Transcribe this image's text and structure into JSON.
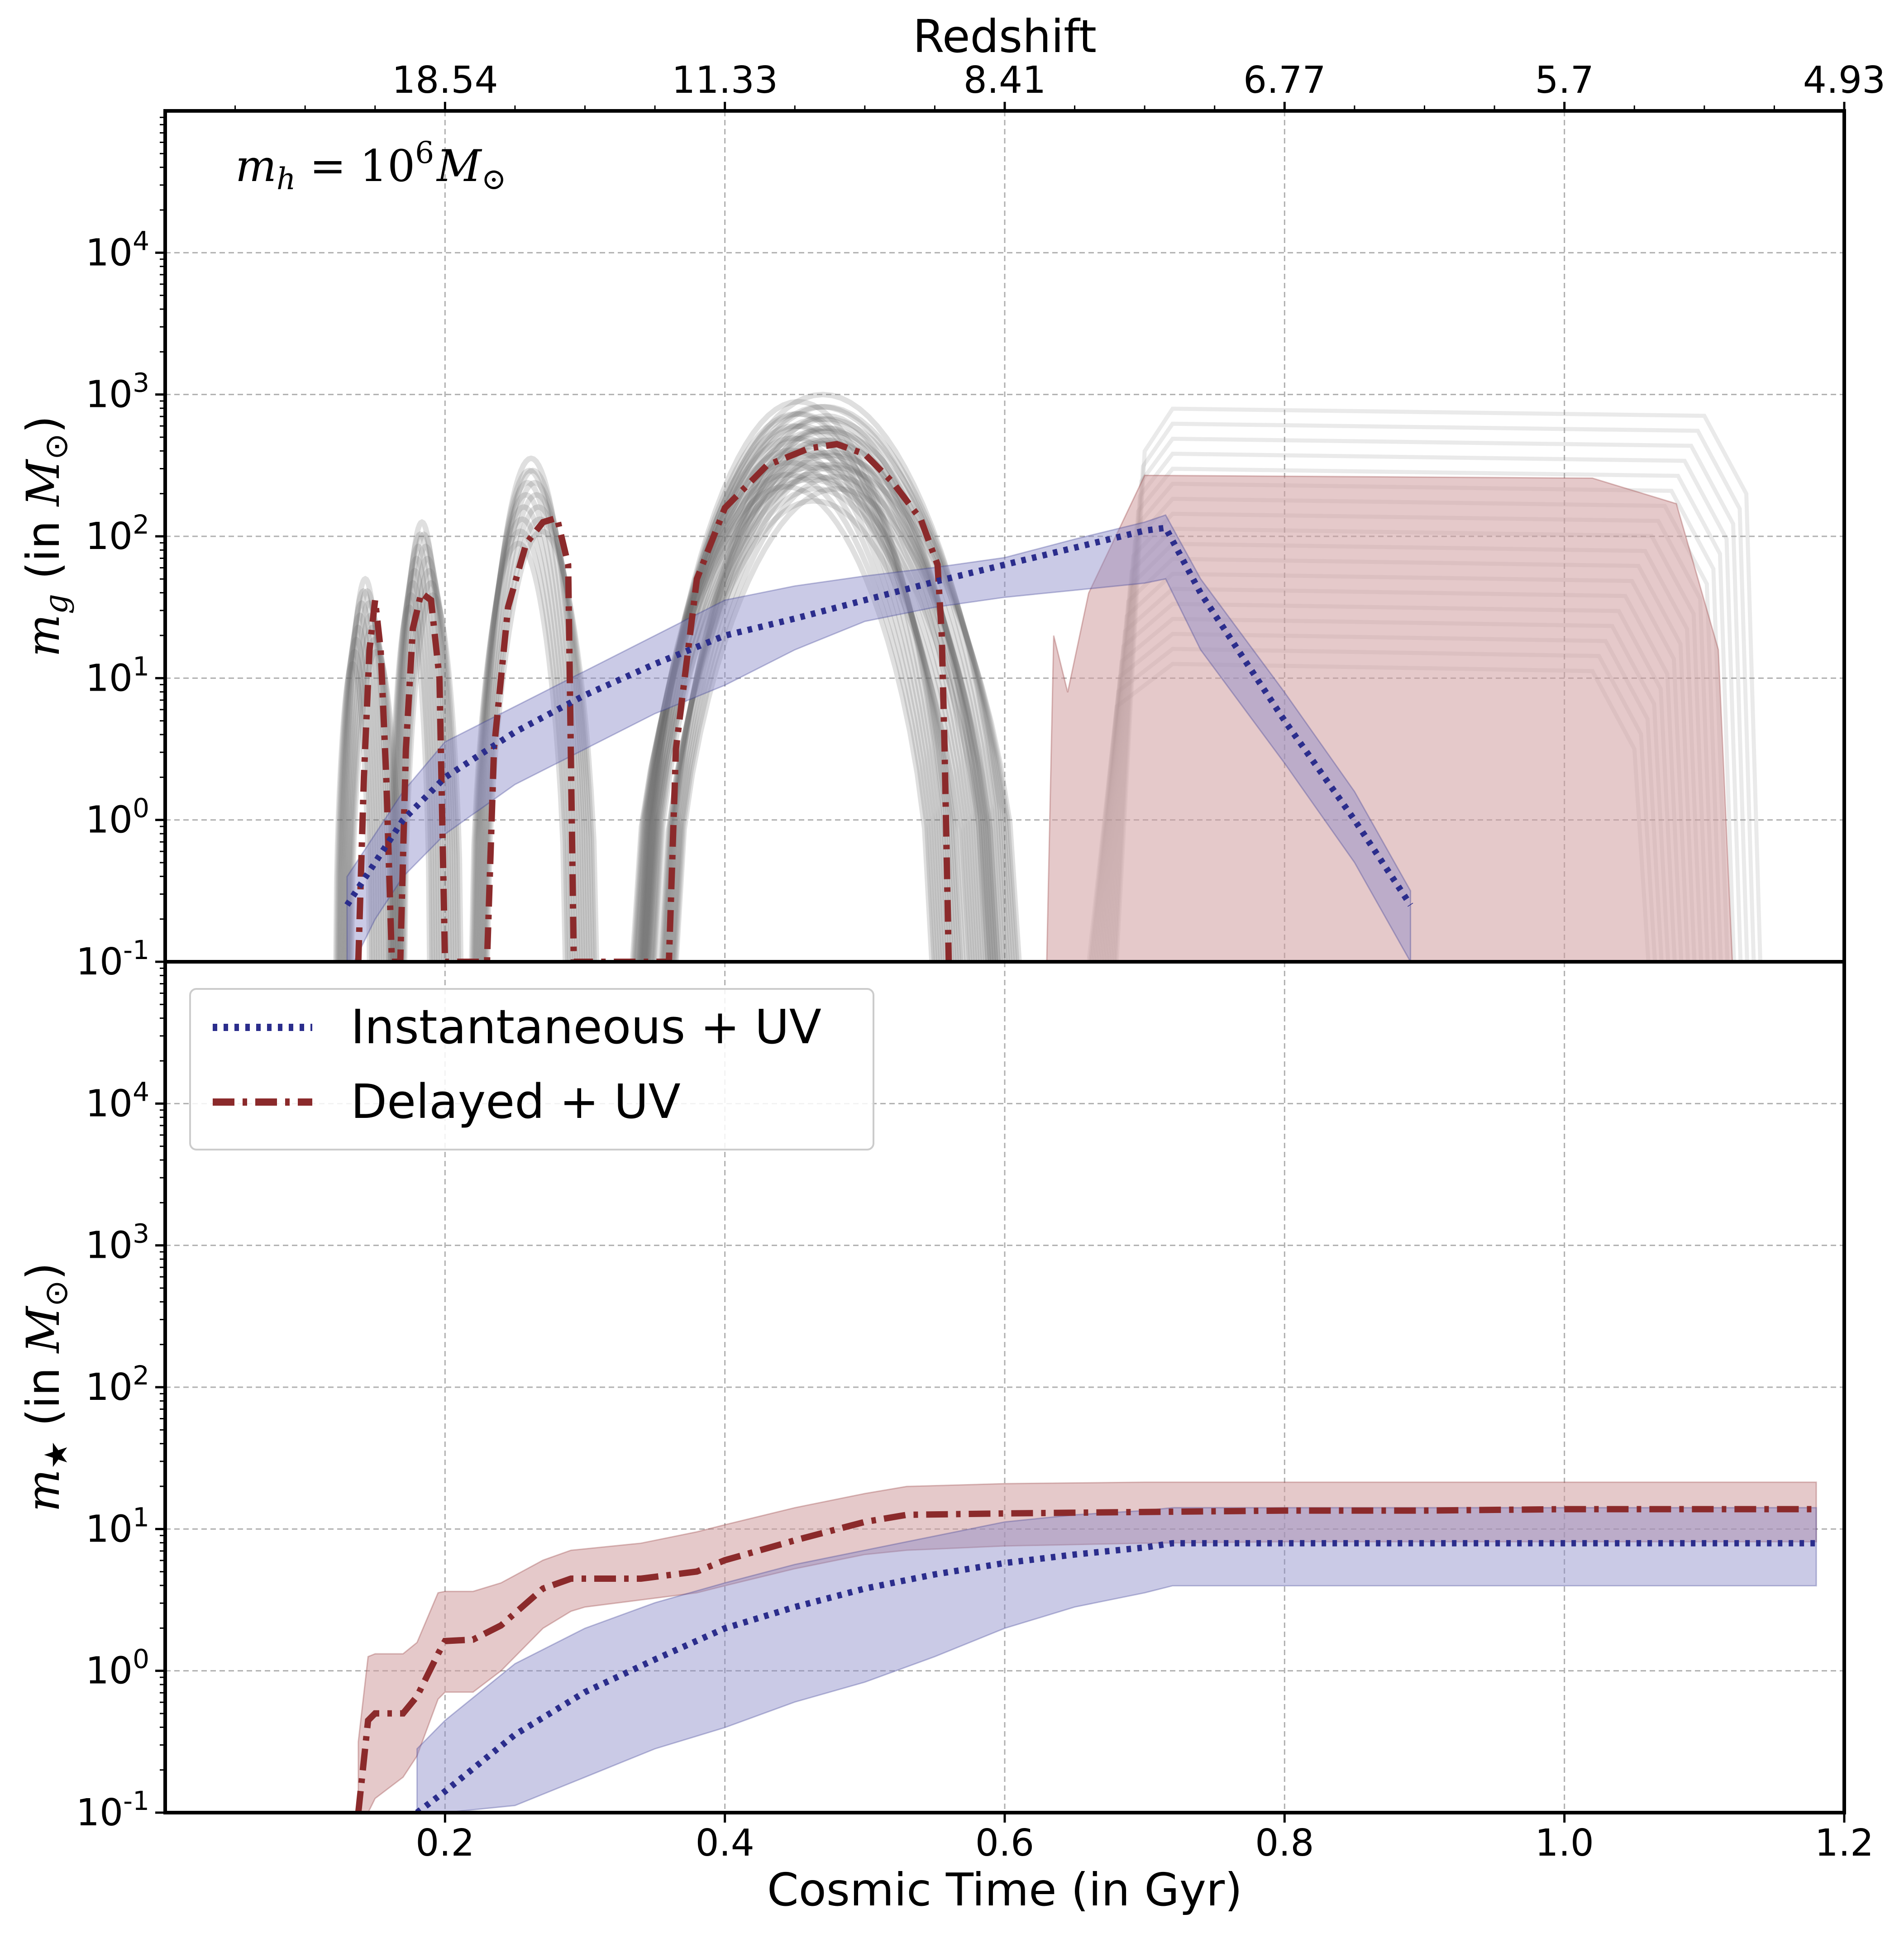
{
  "chart_data": [
    {
      "panel": "top",
      "type": "line",
      "ylabel_symbol": "m",
      "ylabel_subscript": "g",
      "ylabel_suffix": " (in ",
      "ylabel_unit": "M",
      "ylabel_unit_sub": "⊙",
      "ylabel_close": ")",
      "annotation": {
        "lhs": "m",
        "lhs_sub": "h",
        "eq": " = 10",
        "exp": "6",
        "unit": "M",
        "unit_sub": "⊙"
      },
      "xlim": [
        0.0,
        1.2
      ],
      "ylim_log10": [
        -1,
        5
      ],
      "y_scale": "log",
      "grid": true,
      "top_axis": {
        "label": "Redshift",
        "ticks": [
          {
            "t": 0.2,
            "label": "18.54"
          },
          {
            "t": 0.4,
            "label": "11.33"
          },
          {
            "t": 0.6,
            "label": "8.41"
          },
          {
            "t": 0.8,
            "label": "6.77"
          },
          {
            "t": 1.0,
            "label": "5.7"
          },
          {
            "t": 1.2,
            "label": "4.93"
          }
        ]
      },
      "y_ticks": [
        {
          "exp": -1,
          "base": "10",
          "sup": "-1"
        },
        {
          "exp": 0,
          "base": "10",
          "sup": "0"
        },
        {
          "exp": 1,
          "base": "10",
          "sup": "1"
        },
        {
          "exp": 2,
          "base": "10",
          "sup": "2"
        },
        {
          "exp": 3,
          "base": "10",
          "sup": "3"
        },
        {
          "exp": 4,
          "base": "10",
          "sup": "4"
        }
      ],
      "series": [
        {
          "name": "Instantaneous + UV",
          "color": "#2b2d8c",
          "style": "dotted",
          "band_color": "#8a8ac8",
          "t": [
            0.13,
            0.15,
            0.17,
            0.2,
            0.25,
            0.3,
            0.35,
            0.4,
            0.45,
            0.5,
            0.55,
            0.6,
            0.65,
            0.7,
            0.715,
            0.74,
            0.8,
            0.85,
            0.89
          ],
          "log_m": [
            -0.6,
            -0.3,
            0.0,
            0.3,
            0.62,
            0.88,
            1.1,
            1.3,
            1.42,
            1.55,
            1.68,
            1.8,
            1.92,
            2.04,
            2.06,
            1.6,
            0.7,
            0.0,
            -0.6
          ],
          "band_lo": [
            -1.1,
            -0.7,
            -0.4,
            -0.1,
            0.25,
            0.5,
            0.75,
            0.95,
            1.2,
            1.4,
            1.5,
            1.57,
            1.62,
            1.67,
            1.7,
            1.2,
            0.4,
            -0.3,
            -1.0
          ],
          "band_hi": [
            -0.4,
            -0.1,
            0.2,
            0.55,
            0.8,
            1.05,
            1.3,
            1.55,
            1.65,
            1.72,
            1.78,
            1.85,
            1.98,
            2.1,
            2.15,
            1.7,
            0.9,
            0.2,
            -0.5
          ]
        },
        {
          "name": "Delayed + UV",
          "color": "#8b2a2b",
          "style": "dashdot",
          "band_color": "#cf9c9e",
          "t": [
            0.138,
            0.142,
            0.146,
            0.15,
            0.154,
            0.158,
            0.162,
            0.168,
            0.172,
            0.177,
            0.183,
            0.19,
            0.196,
            0.2,
            0.205,
            0.23,
            0.235,
            0.245,
            0.258,
            0.27,
            0.28,
            0.288,
            0.292,
            0.3,
            0.36,
            0.365,
            0.38,
            0.4,
            0.43,
            0.46,
            0.48,
            0.5,
            0.52,
            0.54,
            0.552,
            0.555,
            0.557,
            0.56
          ],
          "log_m": [
            -1.0,
            0.3,
            1.2,
            1.55,
            1.2,
            0.3,
            -1.0,
            -1.0,
            0.5,
            1.35,
            1.6,
            1.55,
            1.0,
            -1.0,
            -1.0,
            -1.0,
            0.5,
            1.5,
            1.95,
            2.1,
            2.13,
            1.8,
            -1.0,
            -1.0,
            -1.0,
            0.5,
            1.7,
            2.2,
            2.5,
            2.62,
            2.65,
            2.58,
            2.38,
            2.12,
            1.8,
            1.3,
            0.5,
            -1.0
          ]
        }
      ],
      "delayed_band_plateau": {
        "t_start": 0.7,
        "t_end": 1.12,
        "log_m_top": 2.43,
        "log_m_bottom": -1.0
      },
      "scatter_runs_note": "grey thin lines: individual stochastic runs"
    },
    {
      "panel": "bottom",
      "type": "line",
      "ylabel_symbol": "m",
      "ylabel_subscript": "★",
      "ylabel_suffix": " (in ",
      "ylabel_unit": "M",
      "ylabel_unit_sub": "⊙",
      "ylabel_close": ")",
      "xlabel": "Cosmic Time (in Gyr)",
      "xlim": [
        0.0,
        1.2
      ],
      "ylim_log10": [
        -1,
        5
      ],
      "y_scale": "log",
      "grid": true,
      "x_ticks": [
        {
          "t": 0.2,
          "label": "0.2"
        },
        {
          "t": 0.4,
          "label": "0.4"
        },
        {
          "t": 0.6,
          "label": "0.6"
        },
        {
          "t": 0.8,
          "label": "0.8"
        },
        {
          "t": 1.0,
          "label": "1.0"
        },
        {
          "t": 1.2,
          "label": "1.2"
        }
      ],
      "y_ticks": [
        {
          "exp": -1,
          "base": "10",
          "sup": "-1"
        },
        {
          "exp": 0,
          "base": "10",
          "sup": "0"
        },
        {
          "exp": 1,
          "base": "10",
          "sup": "1"
        },
        {
          "exp": 2,
          "base": "10",
          "sup": "2"
        },
        {
          "exp": 3,
          "base": "10",
          "sup": "3"
        },
        {
          "exp": 4,
          "base": "10",
          "sup": "4"
        }
      ],
      "legend": {
        "placement": "upper-left",
        "entries": [
          {
            "label": "Instantaneous + UV",
            "color": "#2b2d8c",
            "style": "dotted"
          },
          {
            "label": "Delayed + UV",
            "color": "#8b2a2b",
            "style": "dashdot"
          }
        ]
      },
      "series": [
        {
          "name": "Instantaneous + UV",
          "color": "#2b2d8c",
          "style": "dotted",
          "band_color": "#8a8ac8",
          "t": [
            0.18,
            0.2,
            0.25,
            0.3,
            0.35,
            0.4,
            0.45,
            0.5,
            0.55,
            0.6,
            0.65,
            0.7,
            0.72,
            0.8,
            0.9,
            1.0,
            1.1,
            1.18
          ],
          "log_m": [
            -1.0,
            -0.85,
            -0.45,
            -0.15,
            0.08,
            0.3,
            0.45,
            0.58,
            0.68,
            0.76,
            0.82,
            0.87,
            0.9,
            0.9,
            0.9,
            0.9,
            0.9,
            0.9
          ],
          "band_lo": [
            -1.0,
            -1.0,
            -0.95,
            -0.75,
            -0.55,
            -0.4,
            -0.22,
            -0.08,
            0.1,
            0.3,
            0.45,
            0.55,
            0.6,
            0.6,
            0.6,
            0.6,
            0.6,
            0.6
          ],
          "band_hi": [
            -0.55,
            -0.35,
            0.05,
            0.3,
            0.48,
            0.62,
            0.75,
            0.85,
            0.95,
            1.05,
            1.1,
            1.13,
            1.15,
            1.15,
            1.15,
            1.15,
            1.15,
            1.15
          ]
        },
        {
          "name": "Delayed + UV",
          "color": "#8b2a2b",
          "style": "dashdot",
          "band_color": "#cf9c9e",
          "t": [
            0.138,
            0.145,
            0.15,
            0.17,
            0.18,
            0.195,
            0.2,
            0.22,
            0.24,
            0.27,
            0.29,
            0.3,
            0.34,
            0.38,
            0.4,
            0.45,
            0.5,
            0.53,
            0.6,
            0.7,
            0.8,
            0.9,
            1.0,
            1.1,
            1.18
          ],
          "log_m": [
            -1.0,
            -0.35,
            -0.3,
            -0.3,
            -0.18,
            0.12,
            0.21,
            0.22,
            0.32,
            0.58,
            0.65,
            0.65,
            0.65,
            0.7,
            0.78,
            0.92,
            1.05,
            1.1,
            1.11,
            1.12,
            1.13,
            1.13,
            1.14,
            1.14,
            1.14
          ],
          "band_lo": [
            -1.0,
            -1.0,
            -0.9,
            -0.75,
            -0.6,
            -0.2,
            -0.15,
            -0.15,
            0.0,
            0.3,
            0.42,
            0.45,
            0.5,
            0.55,
            0.6,
            0.72,
            0.82,
            0.85,
            0.88,
            0.9,
            0.91,
            0.91,
            0.91,
            0.91,
            0.91
          ],
          "band_hi": [
            -0.5,
            0.1,
            0.12,
            0.12,
            0.2,
            0.55,
            0.56,
            0.56,
            0.62,
            0.78,
            0.85,
            0.86,
            0.9,
            0.98,
            1.03,
            1.15,
            1.25,
            1.3,
            1.32,
            1.33,
            1.33,
            1.33,
            1.33,
            1.33,
            1.33
          ]
        }
      ]
    }
  ]
}
